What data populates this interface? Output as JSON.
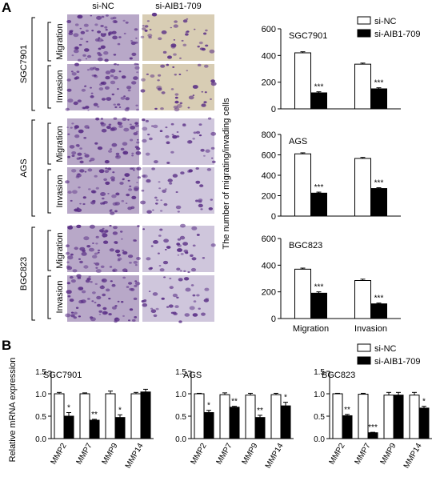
{
  "figure": {
    "panel_a_label": "A",
    "panel_b_label": "B"
  },
  "panel_a": {
    "column_headers": [
      "si-NC",
      "si-AIB1-709"
    ],
    "cell_lines": [
      "SGC7901",
      "AGS",
      "BGC823"
    ],
    "assays": [
      "Migration",
      "Invasion"
    ],
    "micrograph_colors": {
      "si_nc_background": "#b8a8c8",
      "si_aib1_background": "#d8cdb4",
      "cell_stain": "#5a2f86"
    },
    "legend": [
      "si-NC",
      "si-AIB1-709"
    ],
    "ylabel": "The number of migrating/invading  cells"
  },
  "panel_b": {
    "ylabel": "Relative mRNA expression",
    "legend": [
      "si-NC",
      "si-AIB1-709"
    ]
  },
  "chart_data": [
    {
      "type": "bar",
      "title": "SGC7901",
      "categories": [
        "Migration",
        "Invasion"
      ],
      "series": [
        {
          "name": "si-NC",
          "values": [
            420,
            335
          ],
          "errors": [
            8,
            8
          ]
        },
        {
          "name": "si-AIB1-709",
          "values": [
            120,
            150
          ],
          "errors": [
            8,
            8
          ]
        }
      ],
      "significance": [
        "***",
        "***"
      ],
      "ylim": [
        0,
        600
      ],
      "yticks": [
        0,
        200,
        400,
        600
      ],
      "show_xlabels": false
    },
    {
      "type": "bar",
      "title": "AGS",
      "categories": [
        "Migration",
        "Invasion"
      ],
      "series": [
        {
          "name": "si-NC",
          "values": [
            610,
            565
          ],
          "errors": [
            10,
            10
          ]
        },
        {
          "name": "si-AIB1-709",
          "values": [
            225,
            270
          ],
          "errors": [
            10,
            8
          ]
        }
      ],
      "significance": [
        "***",
        "***"
      ],
      "ylim": [
        0,
        800
      ],
      "yticks": [
        0,
        200,
        400,
        600,
        800
      ],
      "show_xlabels": false
    },
    {
      "type": "bar",
      "title": "BGC823",
      "categories": [
        "Migration",
        "Invasion"
      ],
      "series": [
        {
          "name": "si-NC",
          "values": [
            370,
            285
          ],
          "errors": [
            8,
            10
          ]
        },
        {
          "name": "si-AIB1-709",
          "values": [
            190,
            110
          ],
          "errors": [
            10,
            6
          ]
        }
      ],
      "significance": [
        "***",
        "***"
      ],
      "ylim": [
        0,
        600
      ],
      "yticks": [
        0,
        200,
        400,
        600
      ],
      "show_xlabels": true
    },
    {
      "type": "bar",
      "title": "SGC7901",
      "categories": [
        "MMP2",
        "MMP7",
        "MMP9",
        "MMP14"
      ],
      "series": [
        {
          "name": "si-NC",
          "values": [
            1.0,
            1.0,
            1.0,
            1.0
          ],
          "errors": [
            0.03,
            0.02,
            0.06,
            0.03
          ]
        },
        {
          "name": "si-AIB1-709",
          "values": [
            0.5,
            0.41,
            0.47,
            1.04
          ],
          "errors": [
            0.08,
            0.02,
            0.06,
            0.06
          ]
        }
      ],
      "significance": [
        "*",
        "**",
        "*",
        ""
      ],
      "ylim": [
        0,
        1.5
      ],
      "yticks": [
        0,
        0.5,
        1.0,
        1.5
      ]
    },
    {
      "type": "bar",
      "title": "AGS",
      "categories": [
        "MMP2",
        "MMP7",
        "MMP9",
        "MMP14"
      ],
      "series": [
        {
          "name": "si-NC",
          "values": [
            1.0,
            0.98,
            0.97,
            0.98
          ],
          "errors": [
            0.01,
            0.04,
            0.04,
            0.03
          ]
        },
        {
          "name": "si-AIB1-709",
          "values": [
            0.58,
            0.7,
            0.47,
            0.73
          ],
          "errors": [
            0.05,
            0.02,
            0.05,
            0.08
          ]
        }
      ],
      "significance": [
        "*",
        "**",
        "**",
        "*"
      ],
      "ylim": [
        0,
        1.5
      ],
      "yticks": [
        0,
        0.5,
        1.0,
        1.5
      ]
    },
    {
      "type": "bar",
      "title": "BGC823",
      "categories": [
        "MMP2",
        "MMP7",
        "MMP9",
        "MMP14"
      ],
      "series": [
        {
          "name": "si-NC",
          "values": [
            1.0,
            0.99,
            0.97,
            0.97
          ],
          "errors": [
            0.01,
            0.02,
            0.06,
            0.06
          ]
        },
        {
          "name": "si-AIB1-709",
          "values": [
            0.51,
            0.13,
            0.97,
            0.68
          ],
          "errors": [
            0.03,
            0.01,
            0.06,
            0.04
          ]
        }
      ],
      "significance": [
        "**",
        "***",
        "",
        "*"
      ],
      "ylim": [
        0,
        1.5
      ],
      "yticks": [
        0,
        0.5,
        1.0,
        1.5
      ]
    }
  ]
}
